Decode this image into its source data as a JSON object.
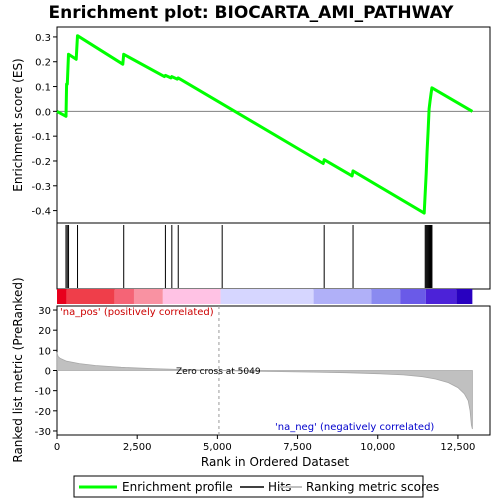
{
  "chart_data": {
    "type": "line",
    "title": "Enrichment plot: BIOCARTA_AMI_PATHWAY",
    "es_panel": {
      "ylabel": "Enrichment score (ES)",
      "ylim": [
        -0.45,
        0.34
      ],
      "yticks": [
        -0.4,
        -0.3,
        -0.2,
        -0.1,
        0.0,
        0.1,
        0.2,
        0.3
      ],
      "ytick_labels": [
        "-0.4",
        "-0.3",
        "-0.2",
        "-0.1",
        "0.0",
        "0.1",
        "0.2",
        "0.3"
      ],
      "series": [
        {
          "name": "Enrichment profile",
          "color": "#00ff00",
          "x": [
            0,
            280,
            300,
            320,
            360,
            600,
            640,
            2050,
            2080,
            3350,
            3380,
            3550,
            3580,
            3750,
            3780,
            8300,
            8330,
            9200,
            9230,
            11450,
            11480,
            11510,
            11540,
            11570,
            11600,
            11630,
            11660,
            11690,
            12950
          ],
          "y": [
            0.0,
            -0.02,
            0.11,
            0.11,
            0.23,
            0.21,
            0.305,
            0.19,
            0.23,
            0.14,
            0.145,
            0.135,
            0.14,
            0.13,
            0.135,
            -0.21,
            -0.195,
            -0.26,
            -0.24,
            -0.41,
            -0.33,
            -0.25,
            -0.16,
            -0.08,
            0.01,
            0.04,
            0.07,
            0.095,
            0.0
          ]
        }
      ]
    },
    "hits": {
      "name": "Hits",
      "positions": [
        280,
        320,
        360,
        640,
        2080,
        3380,
        3580,
        3780,
        5150,
        8330,
        9230,
        11480,
        11510,
        11540,
        11570,
        11600,
        11630,
        11660,
        11690
      ]
    },
    "rank_bar": {
      "colors": [
        "#e8001c",
        "#ef3e4a",
        "#f56476",
        "#f992a2",
        "#ffc2e4",
        "#d6d6ff",
        "#b0b0f8",
        "#8a8af0",
        "#6a5ae8",
        "#4c22d8",
        "#2800c0"
      ],
      "segments": [
        [
          0,
          300,
          "#e8001c"
        ],
        [
          300,
          1800,
          "#ef3e4a"
        ],
        [
          1800,
          2400,
          "#f56476"
        ],
        [
          2400,
          3300,
          "#f992a2"
        ],
        [
          3300,
          5100,
          "#ffc2e4"
        ],
        [
          5100,
          8000,
          "#d6d6ff"
        ],
        [
          8000,
          9800,
          "#b0b0f8"
        ],
        [
          9800,
          10700,
          "#8a8af0"
        ],
        [
          10700,
          11500,
          "#6a5ae8"
        ],
        [
          11500,
          12450,
          "#4c22d8"
        ],
        [
          12450,
          12950,
          "#2800c0"
        ]
      ]
    },
    "metric_panel": {
      "ylabel": "Ranked list metric (PreRanked)",
      "ylim": [
        -32,
        32
      ],
      "yticks": [
        -30,
        -20,
        -10,
        0,
        10,
        20,
        30
      ],
      "ytick_labels": [
        "-30",
        "-20",
        "-10",
        "0",
        "10",
        "20",
        "30"
      ],
      "series": [
        {
          "name": "Ranking metric scores",
          "color": "#c0c0c0",
          "x": [
            0,
            30,
            100,
            300,
            700,
            1200,
            2000,
            3000,
            4000,
            5049,
            6000,
            7000,
            8000,
            9000,
            10000,
            10800,
            11400,
            11800,
            12200,
            12500,
            12700,
            12820,
            12880,
            12920,
            12950
          ],
          "y": [
            9,
            7,
            6,
            4.6,
            3.4,
            2.5,
            1.6,
            0.9,
            0.4,
            0.0,
            -0.3,
            -0.55,
            -0.8,
            -1.1,
            -1.6,
            -2.2,
            -3.1,
            -4.2,
            -6.0,
            -8.5,
            -11.5,
            -15,
            -20,
            -27,
            -29
          ]
        }
      ],
      "pos_label": "'na_pos' (positively correlated)",
      "neg_label": "'na_neg' (negatively correlated)",
      "zero_cross_label": "Zero cross at 5049",
      "zero_cross_x": 5049
    },
    "xaxis": {
      "label": "Rank in Ordered Dataset",
      "xlim": [
        0,
        13500
      ],
      "ticks": [
        0,
        2500,
        5000,
        7500,
        10000,
        12500
      ],
      "tick_labels": [
        "0",
        "2,500",
        "5,000",
        "7,500",
        "10,000",
        "12,500"
      ]
    },
    "legend": {
      "placement": "bottom",
      "items": [
        {
          "label": "Enrichment profile",
          "color": "#00ff00"
        },
        {
          "label": "Hits",
          "color": "#000000"
        },
        {
          "label": "Ranking metric scores",
          "color": "#c0c0c0"
        }
      ]
    }
  }
}
